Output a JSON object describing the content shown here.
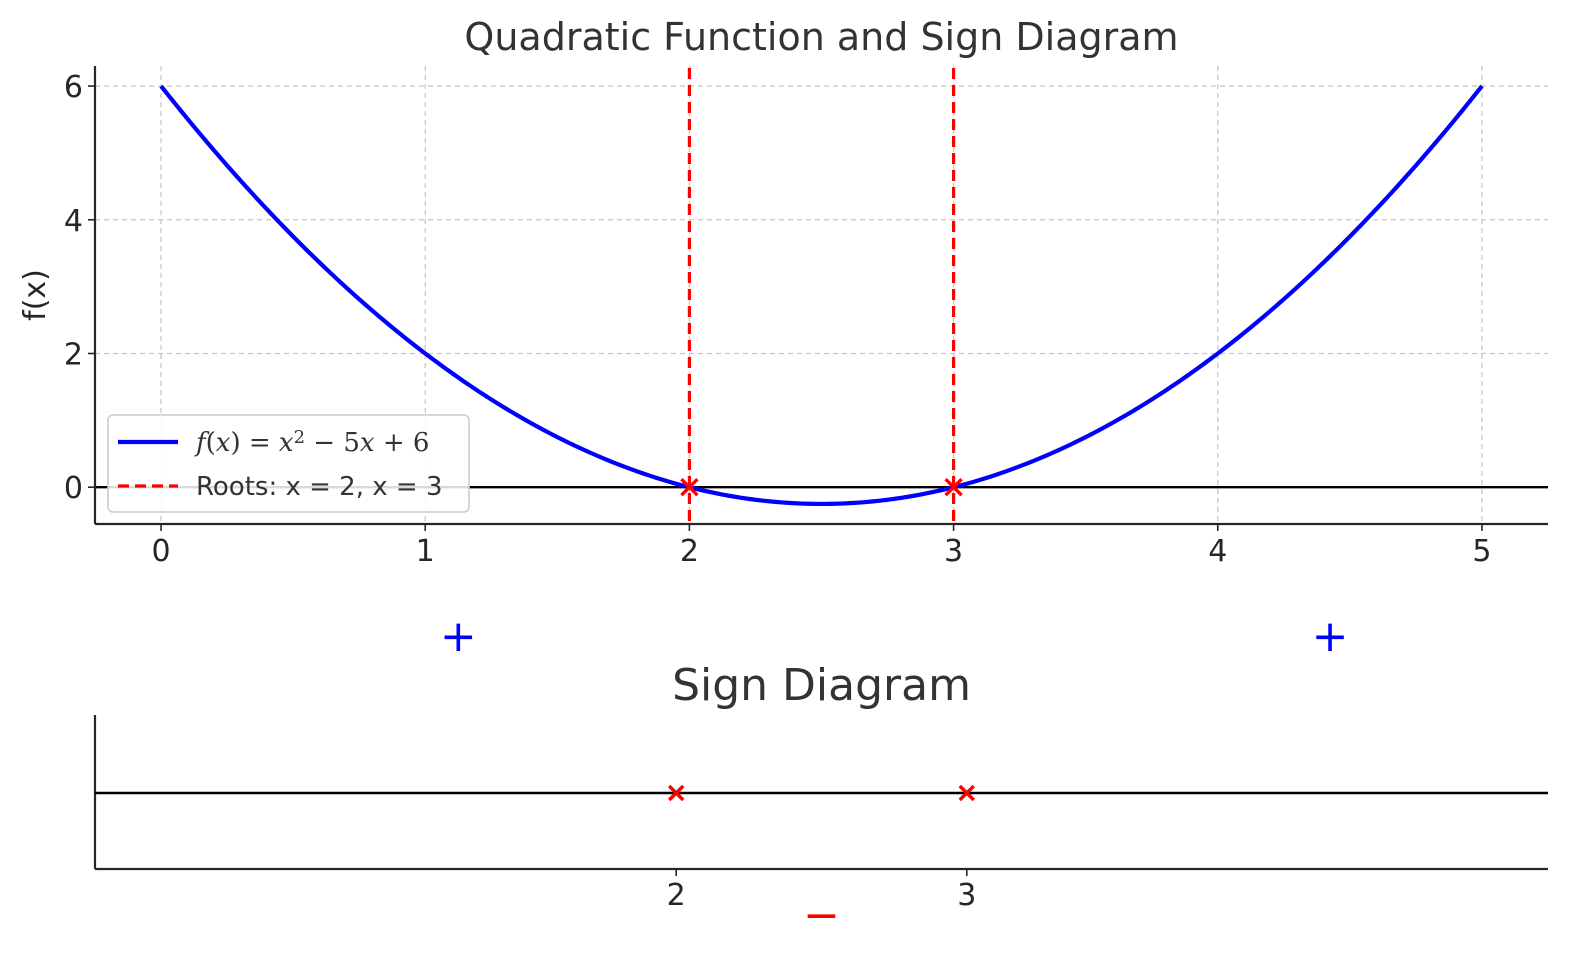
{
  "chart_data": [
    {
      "type": "line",
      "title": "Quadratic Function and Sign Diagram",
      "xlabel": "",
      "ylabel": "f(x)",
      "xlim": [
        -0.25,
        5.25
      ],
      "ylim": [
        -0.55,
        6.3
      ],
      "grid": true,
      "x_ticks": [
        0,
        1,
        2,
        3,
        4,
        5
      ],
      "x_tick_labels": [
        "0",
        "1",
        "2",
        "3",
        "4",
        "5"
      ],
      "y_ticks": [
        0,
        2,
        4,
        6
      ],
      "y_tick_labels": [
        "0",
        "2",
        "4",
        "6"
      ],
      "series": [
        {
          "name": "f(x) = x² − 5x + 6",
          "color": "#0000ff",
          "style": "solid",
          "x": [
            0,
            0.25,
            0.5,
            0.75,
            1,
            1.25,
            1.5,
            1.75,
            2,
            2.25,
            2.5,
            2.75,
            3,
            3.25,
            3.5,
            3.75,
            4,
            4.25,
            4.5,
            4.75,
            5
          ],
          "y": [
            6,
            4.8125,
            3.75,
            2.8125,
            2,
            1.3125,
            0.75,
            0.3125,
            0,
            -0.1875,
            -0.25,
            -0.1875,
            0,
            0.3125,
            0.75,
            1.3125,
            2,
            2.8125,
            3.75,
            4.8125,
            6
          ]
        }
      ],
      "legend": {
        "placement": "lower-left",
        "entries": [
          {
            "label_parts": [
              "f",
              "(",
              "x",
              ") = ",
              "x",
              "2",
              " − 5",
              "x",
              " + 6"
            ],
            "color": "#0000ff",
            "style": "solid"
          },
          {
            "label": "Roots: x = 2, x = 3",
            "color": "#ff0000",
            "style": "dashed"
          }
        ]
      },
      "roots": {
        "x": [
          2,
          3
        ],
        "color": "#ff0000",
        "marker": "x"
      },
      "zero_line": {
        "y": 0,
        "color": "#000000"
      }
    },
    {
      "type": "line",
      "title": "Sign Diagram",
      "xlim": [
        0,
        5
      ],
      "x_ticks": [
        2,
        3
      ],
      "x_tick_labels": [
        "2",
        "3"
      ],
      "roots": {
        "x": [
          2,
          3
        ],
        "color": "#ff0000",
        "marker": "x"
      },
      "signs": [
        {
          "interval": "x < 2",
          "symbol": "+",
          "color": "#0000ff"
        },
        {
          "interval": "2 < x < 3",
          "symbol": "−",
          "color": "#ff0000"
        },
        {
          "interval": "x > 3",
          "symbol": "+",
          "color": "#0000ff"
        }
      ]
    }
  ]
}
